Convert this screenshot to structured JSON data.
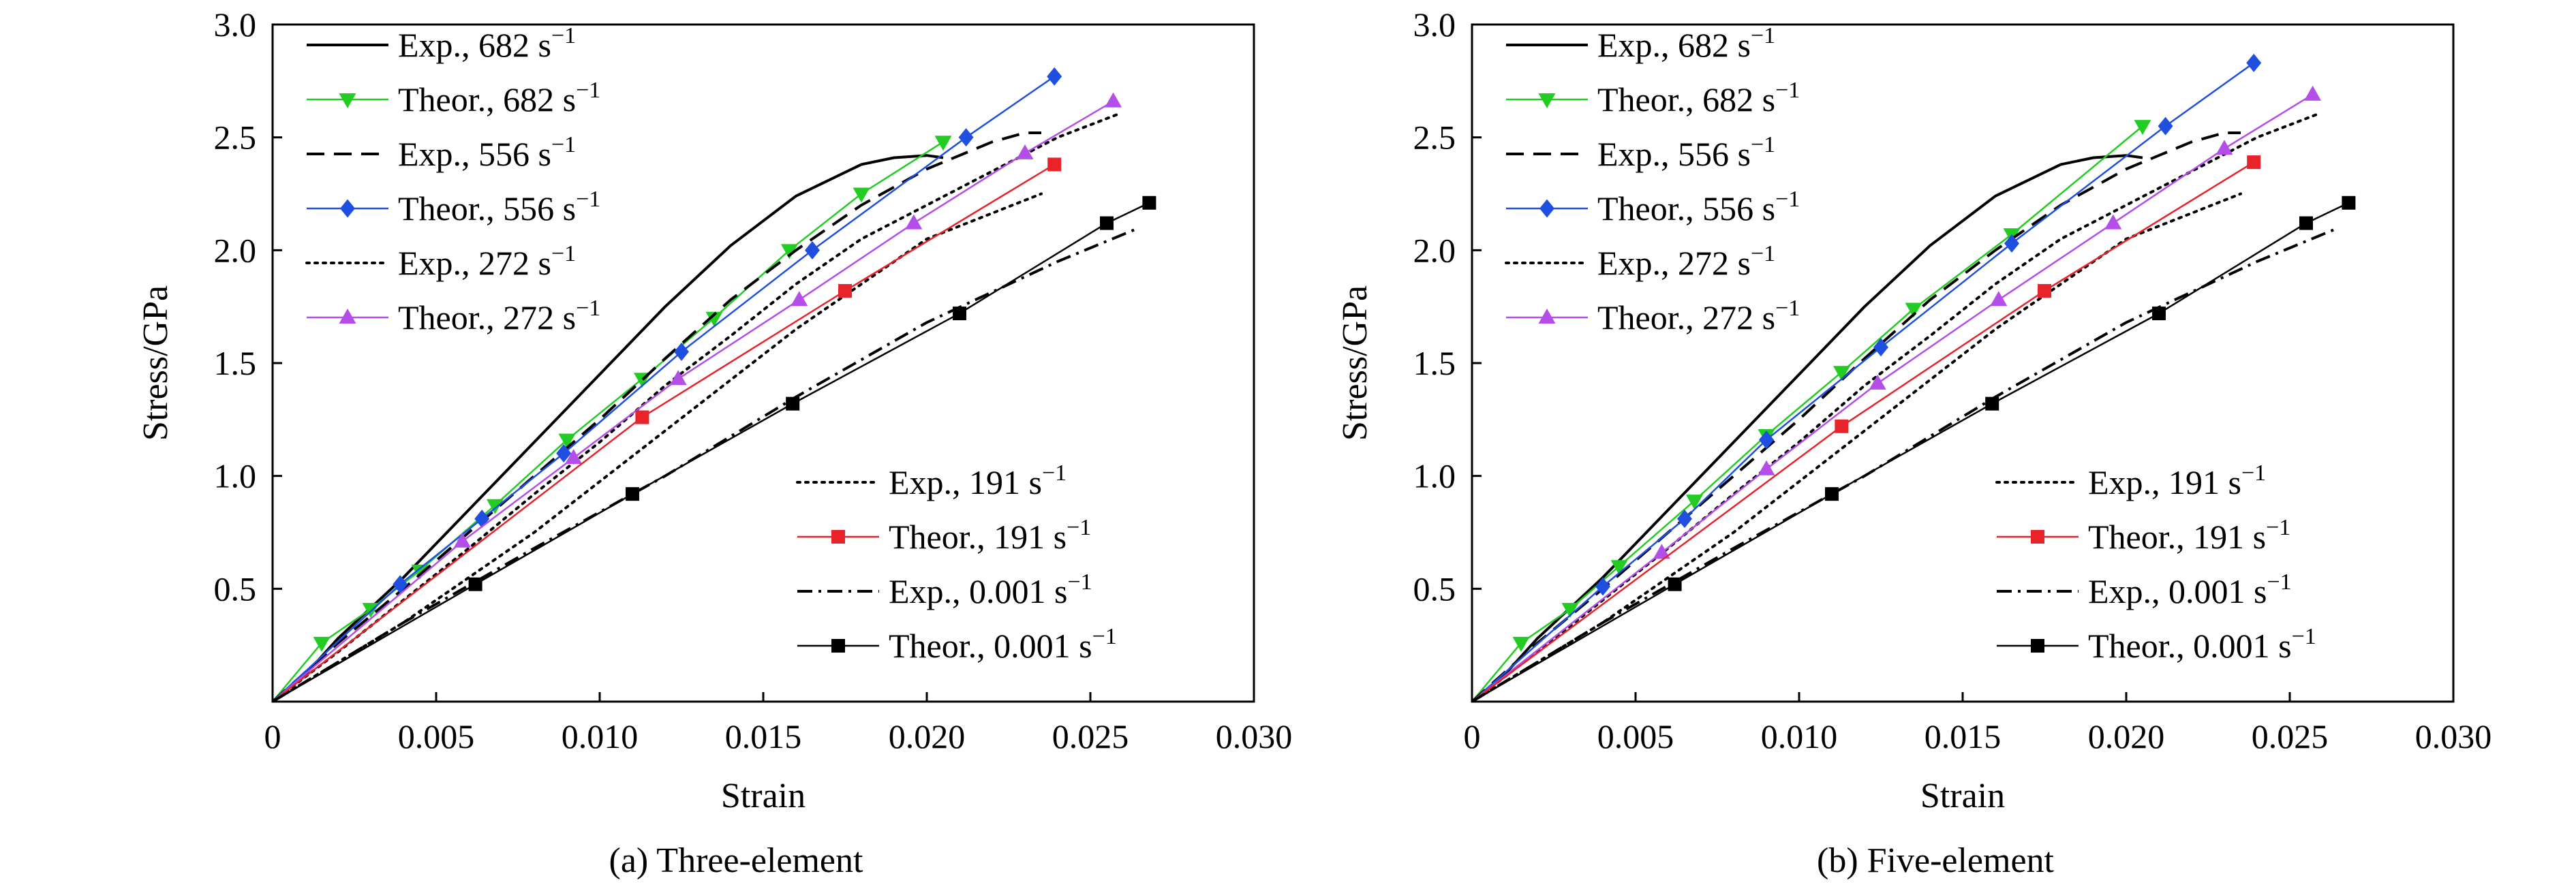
{
  "figure": {
    "panels": [
      {
        "caption": "(a) Three-element"
      },
      {
        "caption": "(b) Five-element"
      }
    ]
  },
  "chart_data": [
    {
      "type": "line",
      "caption": "(a) Three-element",
      "xlabel": "Strain",
      "ylabel": "Stress/GPa",
      "xlim": [
        0,
        0.03
      ],
      "ylim": [
        0,
        3.0
      ],
      "xticks": [
        0,
        0.005,
        0.01,
        0.015,
        0.02,
        0.025,
        0.03
      ],
      "xtick_labels": [
        "0",
        "0.005",
        "0.010",
        "0.015",
        "0.020",
        "0.025",
        "0.030"
      ],
      "yticks": [
        0.5,
        1.0,
        1.5,
        2.0,
        2.5,
        3.0
      ],
      "ytick_labels": [
        "0.5",
        "1.0",
        "1.5",
        "2.0",
        "2.5",
        "3.0"
      ],
      "grid": false,
      "legend_top_left": [
        "exp682",
        "th682",
        "exp556",
        "th556",
        "exp272",
        "th272"
      ],
      "legend_bottom_right": [
        "exp191",
        "th191",
        "exp0001",
        "th0001"
      ],
      "series": [
        {
          "id": "exp682",
          "name": "Exp., 682 s",
          "sup": "−1",
          "color": "#000000",
          "style": "solid",
          "marker": "none",
          "x": [
            0,
            0.001,
            0.002,
            0.004,
            0.006,
            0.008,
            0.01,
            0.012,
            0.014,
            0.016,
            0.018,
            0.019,
            0.02,
            0.0205
          ],
          "y": [
            0,
            0.12,
            0.28,
            0.55,
            0.85,
            1.15,
            1.45,
            1.75,
            2.02,
            2.24,
            2.38,
            2.41,
            2.42,
            2.41
          ]
        },
        {
          "id": "th682",
          "name": "Theor., 682 s",
          "sup": "−1",
          "color": "#22cc22",
          "style": "solid",
          "marker": "triangle-down",
          "x": [
            0,
            0.0015,
            0.003,
            0.0045,
            0.0068,
            0.009,
            0.0113,
            0.0135,
            0.0158,
            0.018,
            0.0205
          ],
          "y": [
            0,
            0.26,
            0.41,
            0.58,
            0.87,
            1.16,
            1.43,
            1.7,
            2.0,
            2.25,
            2.48
          ]
        },
        {
          "id": "exp556",
          "name": "Exp., 556 s",
          "sup": "−1",
          "color": "#000000",
          "style": "dashed",
          "marker": "none",
          "x": [
            0,
            0.002,
            0.004,
            0.006,
            0.008,
            0.01,
            0.012,
            0.014,
            0.016,
            0.018,
            0.02,
            0.022,
            0.023,
            0.0235
          ],
          "y": [
            0,
            0.26,
            0.5,
            0.75,
            1.0,
            1.25,
            1.52,
            1.78,
            2.0,
            2.2,
            2.36,
            2.48,
            2.52,
            2.52
          ]
        },
        {
          "id": "th556",
          "name": "Theor., 556 s",
          "sup": "−1",
          "color": "#1f4fe0",
          "style": "solid",
          "marker": "diamond",
          "x": [
            0,
            0.0039,
            0.0064,
            0.0089,
            0.0125,
            0.0165,
            0.0212,
            0.0239
          ],
          "y": [
            0,
            0.52,
            0.81,
            1.1,
            1.55,
            2.0,
            2.5,
            2.77
          ]
        },
        {
          "id": "exp272",
          "name": "Exp., 272 s",
          "sup": "−1",
          "color": "#000000",
          "style": "dotted",
          "marker": "none",
          "x": [
            0,
            0.002,
            0.004,
            0.006,
            0.008,
            0.01,
            0.012,
            0.014,
            0.016,
            0.018,
            0.02,
            0.022,
            0.024,
            0.0258
          ],
          "y": [
            0,
            0.22,
            0.45,
            0.68,
            0.92,
            1.15,
            1.4,
            1.62,
            1.85,
            2.05,
            2.2,
            2.35,
            2.5,
            2.6
          ]
        },
        {
          "id": "th272",
          "name": "Theor., 272 s",
          "sup": "−1",
          "color": "#b44ee8",
          "style": "solid",
          "marker": "triangle-up",
          "x": [
            0,
            0.0058,
            0.0092,
            0.0124,
            0.0161,
            0.0196,
            0.023,
            0.0257
          ],
          "y": [
            0,
            0.71,
            1.08,
            1.43,
            1.78,
            2.12,
            2.43,
            2.66
          ]
        },
        {
          "id": "exp191",
          "name": "Exp., 191 s",
          "sup": "−1",
          "color": "#000000",
          "style": "dotted",
          "marker": "none",
          "x": [
            0,
            0.004,
            0.008,
            0.012,
            0.016,
            0.02,
            0.0235
          ],
          "y": [
            0,
            0.35,
            0.75,
            1.2,
            1.65,
            2.05,
            2.25
          ]
        },
        {
          "id": "th191",
          "name": "Theor., 191 s",
          "sup": "−1",
          "color": "#e8232a",
          "style": "solid",
          "marker": "square",
          "x": [
            0,
            0.0113,
            0.0175,
            0.0239
          ],
          "y": [
            0,
            1.26,
            1.82,
            2.38
          ]
        },
        {
          "id": "exp0001",
          "name": "Exp., 0.001 s",
          "sup": "−1",
          "color": "#000000",
          "style": "dashdot",
          "marker": "none",
          "x": [
            0,
            0.004,
            0.008,
            0.012,
            0.016,
            0.02,
            0.024,
            0.0265
          ],
          "y": [
            0,
            0.35,
            0.68,
            1.0,
            1.35,
            1.68,
            1.95,
            2.1
          ]
        },
        {
          "id": "th0001",
          "name": "Theor., 0.001 s",
          "sup": "−1",
          "color": "#000000",
          "style": "solid",
          "marker": "square",
          "thin": true,
          "x": [
            0,
            0.0062,
            0.011,
            0.0159,
            0.021,
            0.0255,
            0.0268
          ],
          "y": [
            0,
            0.52,
            0.92,
            1.32,
            1.72,
            2.12,
            2.21
          ]
        }
      ]
    },
    {
      "type": "line",
      "caption": "(b) Five-element",
      "xlabel": "Strain",
      "ylabel": "Stress/GPa",
      "xlim": [
        0,
        0.03
      ],
      "ylim": [
        0,
        3.0
      ],
      "xticks": [
        0,
        0.005,
        0.01,
        0.015,
        0.02,
        0.025,
        0.03
      ],
      "xtick_labels": [
        "0",
        "0.005",
        "0.010",
        "0.015",
        "0.020",
        "0.025",
        "0.030"
      ],
      "yticks": [
        0.5,
        1.0,
        1.5,
        2.0,
        2.5,
        3.0
      ],
      "ytick_labels": [
        "0.5",
        "1.0",
        "1.5",
        "2.0",
        "2.5",
        "3.0"
      ],
      "grid": false,
      "legend_top_left": [
        "exp682",
        "th682",
        "exp556",
        "th556",
        "exp272",
        "th272"
      ],
      "legend_bottom_right": [
        "exp191",
        "th191",
        "exp0001",
        "th0001"
      ],
      "series": [
        {
          "id": "exp682",
          "name": "Exp., 682 s",
          "sup": "−1",
          "color": "#000000",
          "style": "solid",
          "marker": "none",
          "x": [
            0,
            0.001,
            0.002,
            0.004,
            0.006,
            0.008,
            0.01,
            0.012,
            0.014,
            0.016,
            0.018,
            0.019,
            0.02,
            0.0205
          ],
          "y": [
            0,
            0.12,
            0.28,
            0.55,
            0.85,
            1.15,
            1.45,
            1.75,
            2.02,
            2.24,
            2.38,
            2.41,
            2.42,
            2.41
          ]
        },
        {
          "id": "th682",
          "name": "Theor., 682 s",
          "sup": "−1",
          "color": "#22cc22",
          "style": "solid",
          "marker": "triangle-down",
          "x": [
            0,
            0.0015,
            0.003,
            0.0045,
            0.0068,
            0.009,
            0.0113,
            0.0135,
            0.0165,
            0.0205
          ],
          "y": [
            0,
            0.26,
            0.41,
            0.6,
            0.89,
            1.18,
            1.46,
            1.74,
            2.07,
            2.55
          ]
        },
        {
          "id": "exp556",
          "name": "Exp., 556 s",
          "sup": "−1",
          "color": "#000000",
          "style": "dashed",
          "marker": "none",
          "x": [
            0,
            0.002,
            0.004,
            0.006,
            0.008,
            0.01,
            0.012,
            0.014,
            0.016,
            0.018,
            0.02,
            0.022,
            0.023,
            0.0235
          ],
          "y": [
            0,
            0.26,
            0.5,
            0.75,
            1.0,
            1.25,
            1.52,
            1.78,
            2.0,
            2.2,
            2.36,
            2.48,
            2.52,
            2.52
          ]
        },
        {
          "id": "th556",
          "name": "Theor., 556 s",
          "sup": "−1",
          "color": "#1f4fe0",
          "style": "solid",
          "marker": "diamond",
          "x": [
            0,
            0.004,
            0.0065,
            0.009,
            0.0125,
            0.0165,
            0.0212,
            0.0239
          ],
          "y": [
            0,
            0.51,
            0.81,
            1.16,
            1.57,
            2.03,
            2.55,
            2.83
          ]
        },
        {
          "id": "exp272",
          "name": "Exp., 272 s",
          "sup": "−1",
          "color": "#000000",
          "style": "dotted",
          "marker": "none",
          "x": [
            0,
            0.002,
            0.004,
            0.006,
            0.008,
            0.01,
            0.012,
            0.014,
            0.016,
            0.018,
            0.02,
            0.022,
            0.024,
            0.0258
          ],
          "y": [
            0,
            0.22,
            0.45,
            0.68,
            0.92,
            1.15,
            1.4,
            1.62,
            1.85,
            2.05,
            2.2,
            2.35,
            2.5,
            2.6
          ]
        },
        {
          "id": "th272",
          "name": "Theor., 272 s",
          "sup": "−1",
          "color": "#b44ee8",
          "style": "solid",
          "marker": "triangle-up",
          "x": [
            0,
            0.0058,
            0.009,
            0.0124,
            0.0161,
            0.0196,
            0.023,
            0.0257
          ],
          "y": [
            0,
            0.66,
            1.03,
            1.41,
            1.78,
            2.12,
            2.45,
            2.69
          ]
        },
        {
          "id": "exp191",
          "name": "Exp., 191 s",
          "sup": "−1",
          "color": "#000000",
          "style": "dotted",
          "marker": "none",
          "x": [
            0,
            0.004,
            0.008,
            0.012,
            0.016,
            0.02,
            0.0235
          ],
          "y": [
            0,
            0.35,
            0.75,
            1.2,
            1.65,
            2.05,
            2.25
          ]
        },
        {
          "id": "th191",
          "name": "Theor., 191 s",
          "sup": "−1",
          "color": "#e8232a",
          "style": "solid",
          "marker": "square",
          "x": [
            0,
            0.0113,
            0.0175,
            0.0239
          ],
          "y": [
            0,
            1.22,
            1.82,
            2.39
          ]
        },
        {
          "id": "exp0001",
          "name": "Exp., 0.001 s",
          "sup": "−1",
          "color": "#000000",
          "style": "dashdot",
          "marker": "none",
          "x": [
            0,
            0.004,
            0.008,
            0.012,
            0.016,
            0.02,
            0.024,
            0.0265
          ],
          "y": [
            0,
            0.35,
            0.68,
            1.0,
            1.35,
            1.68,
            1.95,
            2.1
          ]
        },
        {
          "id": "th0001",
          "name": "Theor., 0.001 s",
          "sup": "−1",
          "color": "#000000",
          "style": "solid",
          "marker": "square",
          "thin": true,
          "x": [
            0,
            0.0062,
            0.011,
            0.0159,
            0.021,
            0.0255,
            0.0268
          ],
          "y": [
            0,
            0.52,
            0.92,
            1.32,
            1.72,
            2.12,
            2.21
          ]
        }
      ]
    }
  ]
}
